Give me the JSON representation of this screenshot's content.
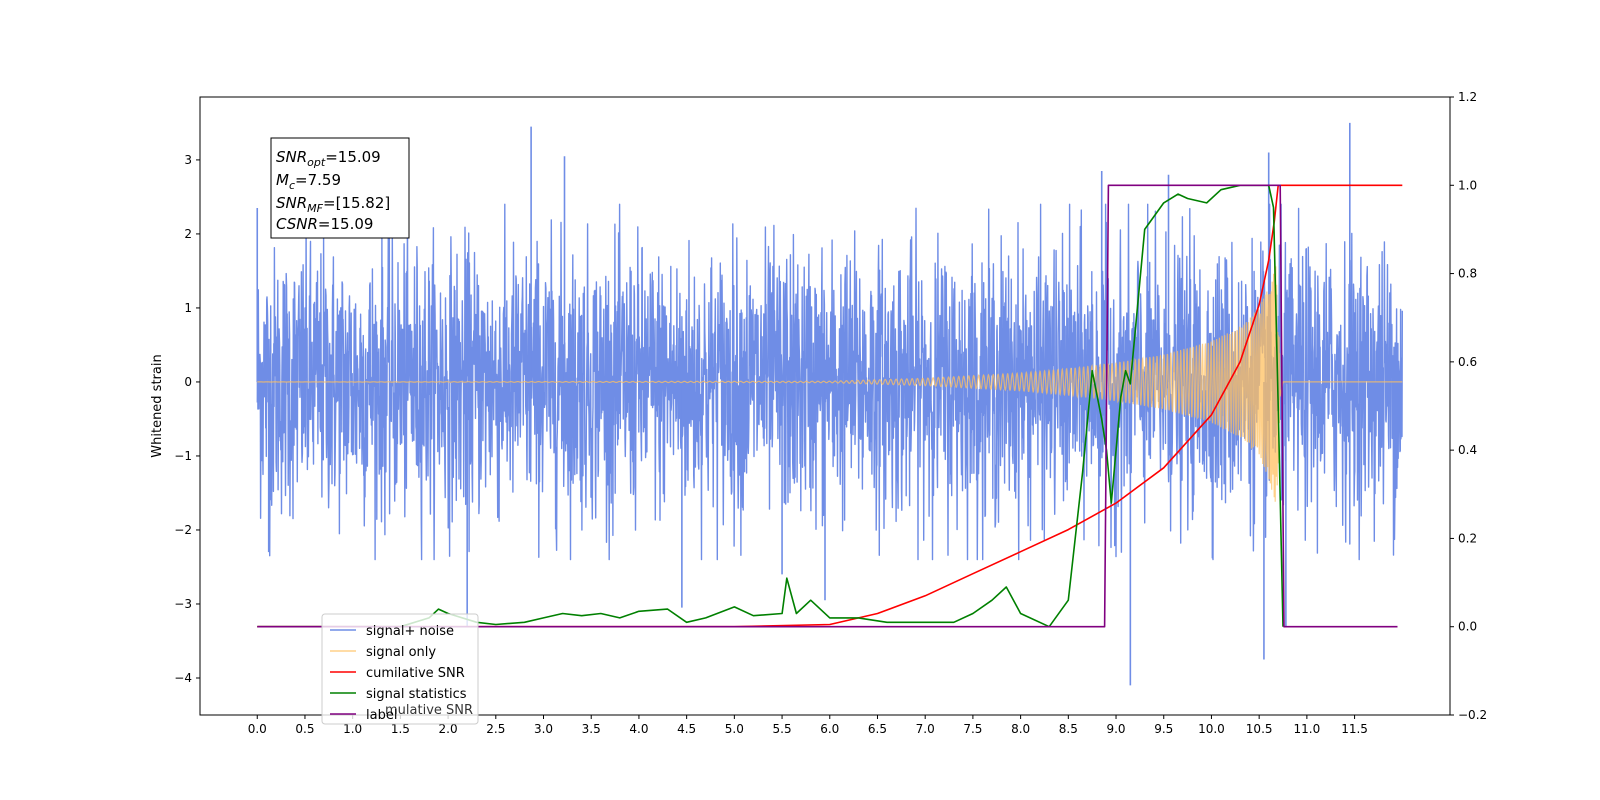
{
  "chart_data": {
    "type": "line",
    "title": "",
    "xlabel": "",
    "ylabel": "Whitened strain",
    "xlim": [
      -0.6,
      12.5
    ],
    "ylim": [
      -4.5,
      3.85
    ],
    "y2lim": [
      -0.2,
      1.2
    ],
    "x_ticks": [
      "0.0",
      "0.5",
      "1.0",
      "1.5",
      "2.0",
      "2.5",
      "3.0",
      "3.5",
      "4.0",
      "4.5",
      "5.0",
      "5.5",
      "6.0",
      "6.5",
      "7.0",
      "7.5",
      "8.0",
      "8.5",
      "9.0",
      "9.5",
      "10.0",
      "10.5",
      "11.0",
      "11.5"
    ],
    "y_ticks": [
      "3",
      "2",
      "1",
      "0",
      "−1",
      "−2",
      "−3",
      "−4"
    ],
    "y2_ticks": [
      "1.2",
      "1.0",
      "0.8",
      "0.6",
      "0.4",
      "0.2",
      "0.0",
      "−0.2"
    ],
    "info_box": {
      "line1": {
        "sym": "SNR",
        "sub": "opt",
        "val": "=15.09"
      },
      "line2": {
        "sym": "M",
        "sub": "c",
        "val": "=7.59"
      },
      "line3": {
        "sym": "SNR",
        "sub": "MF",
        "val": "=[15.82]"
      },
      "line4": {
        "sym": "CSNR",
        "sub": "",
        "val": "=15.09"
      }
    },
    "legend": {
      "placement": "lower-left",
      "entries": [
        "signal+ noise",
        "signal only",
        "cumilative SNR",
        "signal statistics",
        "label"
      ],
      "hidden_entry_fragment": "mulative SNR"
    },
    "series": [
      {
        "name": "signal+ noise",
        "color": "#6f8de6",
        "axis": "left",
        "kind": "noise",
        "x_range": [
          0.0,
          12.0
        ],
        "typical_band": [
          -1.6,
          1.8
        ],
        "spikes": [
          {
            "x": 0.0,
            "y": 2.35
          },
          {
            "x": 0.12,
            "y": -2.3
          },
          {
            "x": 2.2,
            "y": -3.3
          },
          {
            "x": 2.87,
            "y": 3.45
          },
          {
            "x": 3.22,
            "y": 3.05
          },
          {
            "x": 4.45,
            "y": -3.05
          },
          {
            "x": 5.5,
            "y": -2.6
          },
          {
            "x": 5.95,
            "y": -2.95
          },
          {
            "x": 8.85,
            "y": 2.85
          },
          {
            "x": 9.15,
            "y": -4.1
          },
          {
            "x": 9.55,
            "y": 2.8
          },
          {
            "x": 10.55,
            "y": -3.75
          },
          {
            "x": 10.6,
            "y": 3.1
          },
          {
            "x": 10.78,
            "y": -3.3
          },
          {
            "x": 11.45,
            "y": 3.5
          }
        ]
      },
      {
        "name": "signal only",
        "color": "#ffc060",
        "axis": "left",
        "kind": "chirp",
        "x_range": [
          0.0,
          12.0
        ],
        "envelope": [
          [
            0.0,
            0.0
          ],
          [
            6.0,
            0.01
          ],
          [
            7.0,
            0.05
          ],
          [
            8.0,
            0.12
          ],
          [
            8.5,
            0.18
          ],
          [
            9.0,
            0.26
          ],
          [
            9.5,
            0.37
          ],
          [
            10.0,
            0.55
          ],
          [
            10.3,
            0.75
          ],
          [
            10.5,
            1.0
          ],
          [
            10.6,
            1.3
          ],
          [
            10.68,
            1.7
          ],
          [
            10.72,
            0.3
          ],
          [
            10.75,
            0.0
          ],
          [
            12.0,
            0.0
          ]
        ]
      },
      {
        "name": "cumilative SNR",
        "color": "#ff0000",
        "axis": "right",
        "x": [
          0.0,
          5.0,
          6.0,
          6.5,
          7.0,
          7.5,
          8.0,
          8.5,
          9.0,
          9.5,
          10.0,
          10.3,
          10.5,
          10.6,
          10.66,
          10.7,
          12.0
        ],
        "values": [
          0.0,
          0.0,
          0.005,
          0.03,
          0.07,
          0.12,
          0.17,
          0.22,
          0.28,
          0.36,
          0.48,
          0.6,
          0.73,
          0.83,
          0.92,
          1.0,
          1.0
        ]
      },
      {
        "name": "signal statistics",
        "color": "#008000",
        "axis": "right",
        "x": [
          0.0,
          1.0,
          1.5,
          1.8,
          1.9,
          2.0,
          2.3,
          2.5,
          2.8,
          3.0,
          3.2,
          3.4,
          3.6,
          3.8,
          4.0,
          4.3,
          4.5,
          4.7,
          5.0,
          5.2,
          5.5,
          5.55,
          5.65,
          5.8,
          6.0,
          6.3,
          6.6,
          7.0,
          7.3,
          7.5,
          7.7,
          7.85,
          8.0,
          8.3,
          8.5,
          8.65,
          8.75,
          8.85,
          8.9,
          8.95,
          9.05,
          9.1,
          9.15,
          9.3,
          9.5,
          9.65,
          9.75,
          9.95,
          10.1,
          10.3,
          10.5,
          10.6,
          10.65,
          10.7,
          10.75
        ],
        "values": [
          0.0,
          0.0,
          0.0,
          0.02,
          0.04,
          0.03,
          0.01,
          0.005,
          0.01,
          0.02,
          0.03,
          0.025,
          0.03,
          0.02,
          0.035,
          0.04,
          0.01,
          0.02,
          0.045,
          0.025,
          0.03,
          0.11,
          0.03,
          0.06,
          0.02,
          0.02,
          0.01,
          0.01,
          0.01,
          0.03,
          0.06,
          0.09,
          0.03,
          0.0,
          0.06,
          0.35,
          0.58,
          0.47,
          0.4,
          0.28,
          0.52,
          0.58,
          0.55,
          0.9,
          0.96,
          0.98,
          0.97,
          0.96,
          0.99,
          1.0,
          1.0,
          1.0,
          0.95,
          0.5,
          0.0
        ]
      },
      {
        "name": "label",
        "color": "#800080",
        "axis": "right",
        "x": [
          0.0,
          8.88,
          8.92,
          10.72,
          10.76,
          11.95
        ],
        "values": [
          0.0,
          0.0,
          1.0,
          1.0,
          0.0,
          0.0
        ]
      }
    ]
  }
}
